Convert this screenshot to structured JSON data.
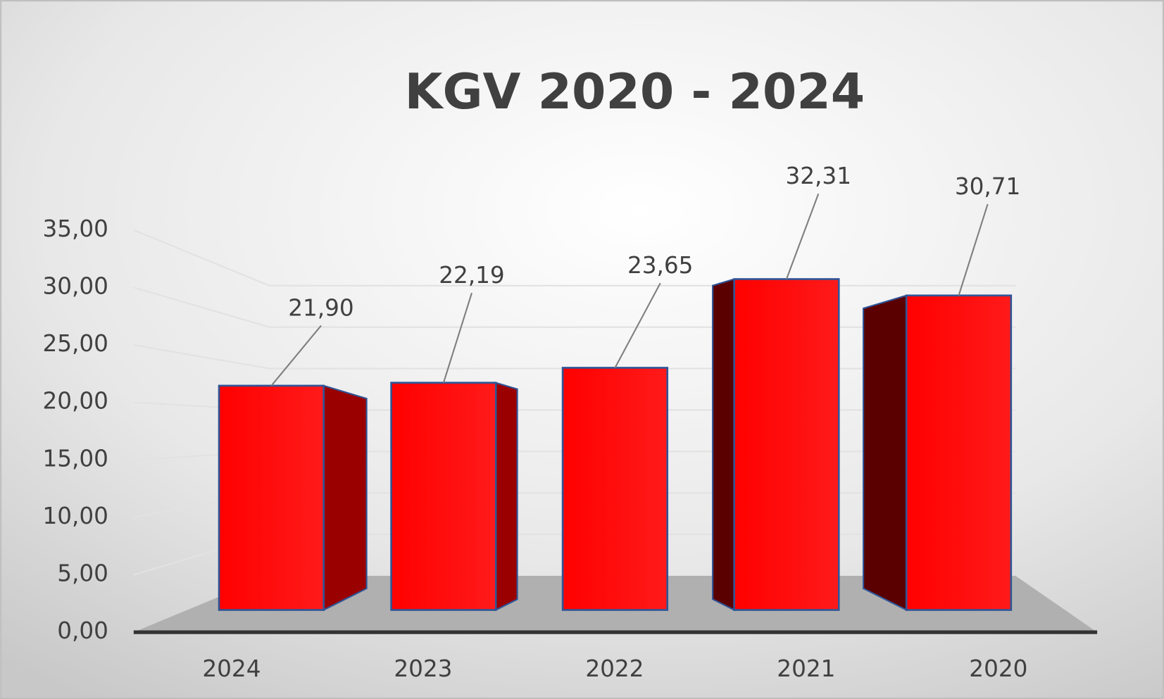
{
  "chart_data": {
    "type": "bar",
    "title": "KGV 2020 - 2024",
    "categories": [
      "2024",
      "2023",
      "2022",
      "2021",
      "2020"
    ],
    "values": [
      21.9,
      22.19,
      23.65,
      32.31,
      30.71
    ],
    "value_labels": [
      "21,90",
      "22,19",
      "23,65",
      "32,31",
      "30,71"
    ],
    "color": "#ff0000",
    "ylim": [
      0,
      35
    ],
    "yticks": [
      {
        "value": 0,
        "label": "0,00"
      },
      {
        "value": 5,
        "label": "5,00"
      },
      {
        "value": 10,
        "label": "10,00"
      },
      {
        "value": 15,
        "label": "15,00"
      },
      {
        "value": 20,
        "label": "20,00"
      },
      {
        "value": 25,
        "label": "25,00"
      },
      {
        "value": 30,
        "label": "30,00"
      },
      {
        "value": 35,
        "label": "35,00"
      }
    ],
    "grid": true
  }
}
